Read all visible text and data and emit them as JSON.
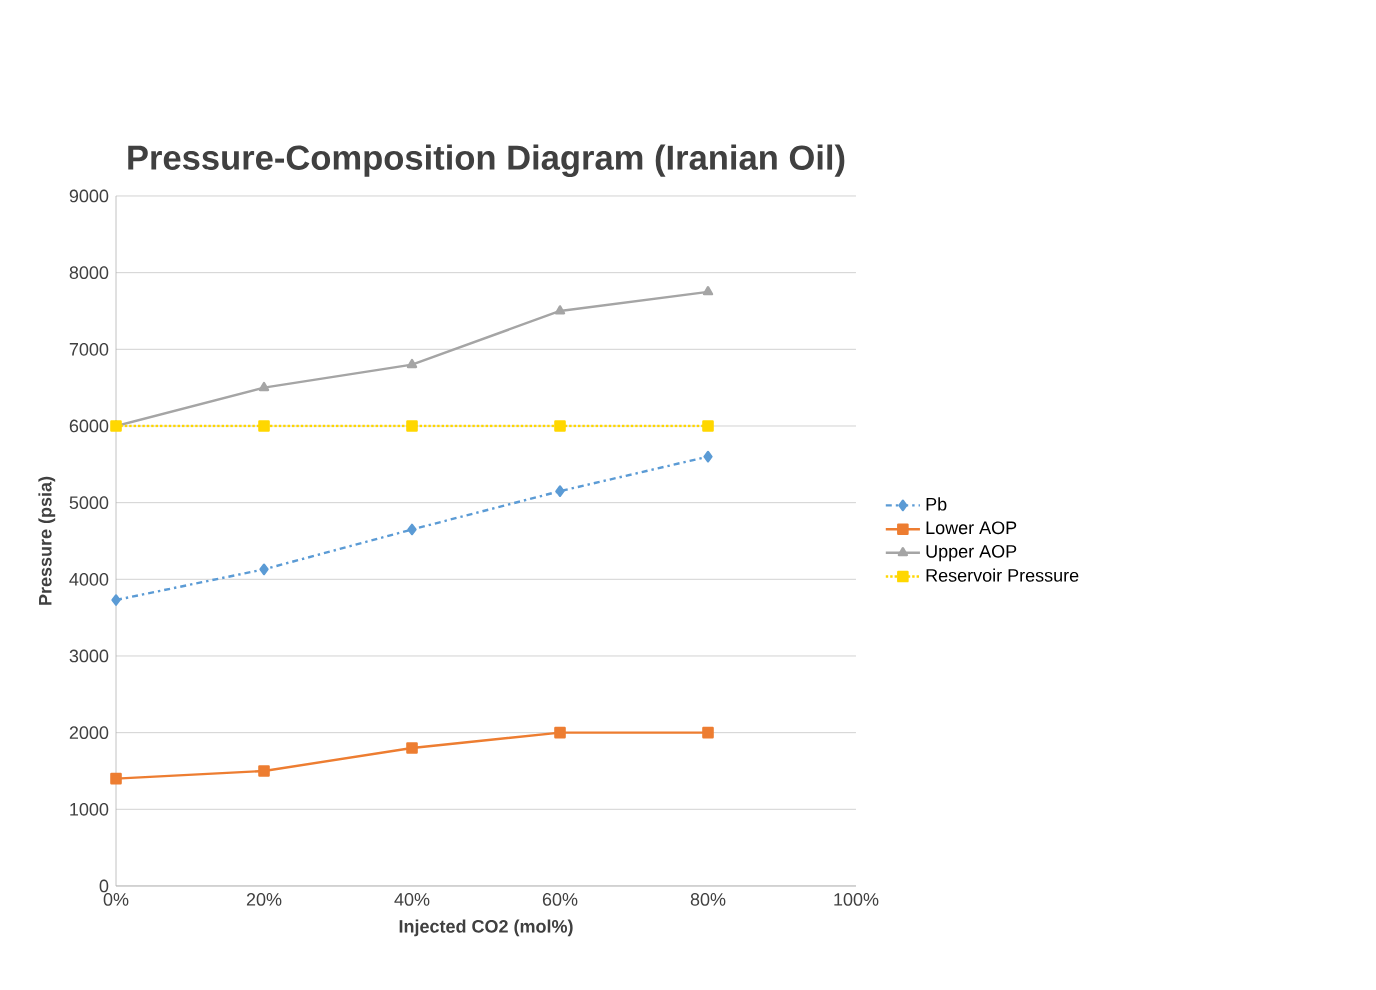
{
  "chart_data": {
    "type": "line",
    "title": "Pressure-Composition Diagram (Iranian Oil)",
    "xlabel": "Injected CO2 (mol%)",
    "ylabel": "Pressure (psia)",
    "x": [
      0,
      20,
      40,
      60,
      80
    ],
    "xlim": [
      0,
      100
    ],
    "xticks": [
      {
        "value": 0,
        "label": "0%"
      },
      {
        "value": 20,
        "label": "20%"
      },
      {
        "value": 40,
        "label": "40%"
      },
      {
        "value": 60,
        "label": "60%"
      },
      {
        "value": 80,
        "label": "80%"
      },
      {
        "value": 100,
        "label": "100%"
      }
    ],
    "ylim": [
      0,
      9000
    ],
    "yticks": [
      0,
      1000,
      2000,
      3000,
      4000,
      5000,
      6000,
      7000,
      8000,
      9000
    ],
    "grid": "y",
    "legend": "right",
    "series": [
      {
        "name": "Pb",
        "color": "#5b9bd5",
        "marker": "diamond",
        "line_style": "dashed",
        "values": [
          3730,
          4130,
          4650,
          5150,
          5600
        ]
      },
      {
        "name": "Lower AOP",
        "color": "#ed7d31",
        "marker": "square",
        "line_style": "solid",
        "values": [
          1400,
          1500,
          1800,
          2000,
          2000
        ]
      },
      {
        "name": "Upper AOP",
        "color": "#a5a5a5",
        "marker": "triangle",
        "line_style": "solid",
        "values": [
          6000,
          6500,
          6800,
          7500,
          7750
        ]
      },
      {
        "name": "Reservoir Pressure",
        "color": "#ffd700",
        "marker": "square",
        "line_style": "dotted",
        "values": [
          6000,
          6000,
          6000,
          6000,
          6000
        ]
      }
    ]
  }
}
